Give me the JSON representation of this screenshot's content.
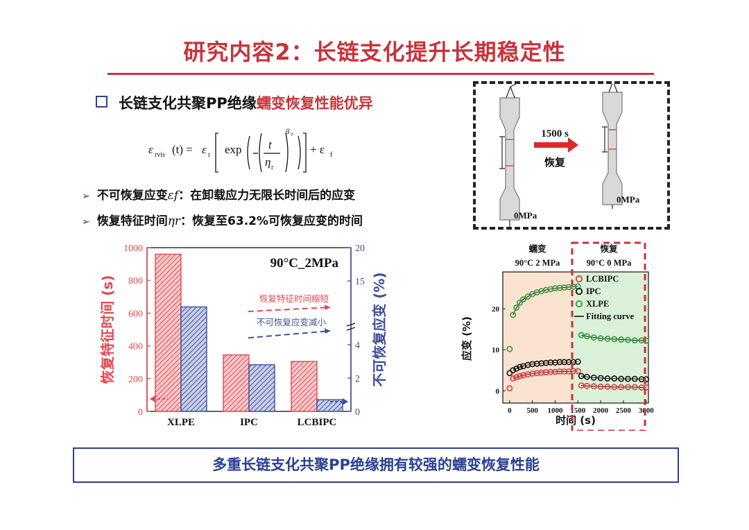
{
  "title": "研究内容2：长链支化提升长期稳定性",
  "subheading": {
    "prefix": "长链支化共聚PP绝缘",
    "highlight": "蠕变恢复性能优异"
  },
  "formula": {
    "lhs": "ε",
    "lhs_sub": "rvis",
    "t_arg": "(t) =",
    "coef": "ε",
    "coef_sub": "r",
    "exp": "exp",
    "num": "t",
    "den": "η",
    "den_sub": "r",
    "power": "β",
    "power_sub": "r",
    "tail": "+ ε",
    "tail_sub": "f"
  },
  "bullets": [
    {
      "marker": "➢",
      "before": "不可恢复应变",
      "symbol": "εf",
      "after": "：在卸载应力无限长时间后的应变"
    },
    {
      "marker": "➢",
      "before": "恢复特征时间",
      "symbol": "ηr",
      "after": "：恢复至63.2%可恢复应变的时间"
    }
  ],
  "diagram": {
    "arrow_label": "1500 s",
    "arrow_sub": "恢复",
    "left_stress": "0MPa",
    "right_stress": "0MPa"
  },
  "chart_data": [
    {
      "type": "bar",
      "title": "90°C_2MPa",
      "categories": [
        "XLPE",
        "IPC",
        "LCBIPC"
      ],
      "ylabel": "恢复特征时间 (s)",
      "y2label": "不可恢复应变 (%)",
      "ylim": [
        0,
        1000
      ],
      "y_ticks": [
        "0",
        "200",
        "400",
        "600",
        "800",
        "1000"
      ],
      "y2_ticks": [
        "0",
        "2",
        "4",
        "15",
        "20"
      ],
      "series": [
        {
          "name": "恢复特征时间",
          "axis": "left",
          "color": "#e0474f",
          "values": [
            960,
            345,
            305
          ]
        },
        {
          "name": "不可恢复应变",
          "axis": "right",
          "color": "#3b4f9a",
          "values": [
            11.1,
            2.8,
            0.7
          ]
        }
      ],
      "annotations": [
        "恢复特征时间缩短",
        "不可恢复应变减小"
      ],
      "colors": {
        "red": "#e0474f",
        "blue": "#3b4f9a"
      }
    },
    {
      "type": "scatter",
      "region_labels": [
        {
          "title": "蠕变",
          "sub": "90°C 2 MPa"
        },
        {
          "title": "恢复",
          "sub": "90°C 0 MPa"
        }
      ],
      "xlabel": "时间 (s)",
      "ylabel": "应变 (%)",
      "xlim": [
        -150,
        3050
      ],
      "ylim": [
        -3,
        29
      ],
      "x_ticks": [
        "0",
        "500",
        "1000",
        "1500",
        "2000",
        "2500",
        "3000"
      ],
      "y_ticks": [
        "0",
        "10",
        "20"
      ],
      "legend": [
        "LCBIPC",
        "IPC",
        "XLPE",
        "Fitting curve"
      ],
      "series": [
        {
          "name": "LCBIPC",
          "color": "#e0363e",
          "x": [
            0,
            75,
            150,
            225,
            300,
            400,
            500,
            600,
            700,
            800,
            900,
            1000,
            1100,
            1200,
            1300,
            1400,
            1500,
            1575,
            1700,
            1850,
            2000,
            2150,
            2300,
            2450,
            2600,
            2750,
            2900,
            3000
          ],
          "y": [
            0.6,
            3.0,
            3.3,
            3.6,
            3.8,
            4.0,
            4.2,
            4.3,
            4.4,
            4.5,
            4.6,
            4.6,
            4.7,
            4.7,
            4.7,
            4.8,
            4.8,
            1.3,
            1.2,
            1.1,
            1.0,
            1.0,
            0.9,
            0.9,
            0.9,
            0.9,
            0.8,
            0.8
          ]
        },
        {
          "name": "IPC",
          "color": "#111111",
          "x": [
            0,
            75,
            150,
            225,
            300,
            400,
            500,
            600,
            700,
            800,
            900,
            1000,
            1100,
            1200,
            1300,
            1400,
            1500,
            1575,
            1700,
            1850,
            2000,
            2150,
            2300,
            2450,
            2600,
            2750,
            2900,
            3000
          ],
          "y": [
            4.3,
            5.0,
            5.4,
            5.8,
            6.0,
            6.3,
            6.5,
            6.6,
            6.7,
            6.8,
            6.9,
            6.9,
            7.0,
            7.0,
            7.0,
            7.0,
            7.1,
            3.6,
            3.4,
            3.2,
            3.1,
            3.0,
            3.0,
            2.9,
            2.9,
            2.9,
            2.8,
            2.8
          ]
        },
        {
          "name": "XLPE",
          "color": "#2f9a3a",
          "x": [
            0,
            75,
            150,
            225,
            300,
            400,
            500,
            600,
            700,
            800,
            900,
            1000,
            1100,
            1200,
            1300,
            1400,
            1500,
            1575,
            1700,
            1850,
            2000,
            2150,
            2300,
            2450,
            2600,
            2750,
            2900,
            3000
          ],
          "y": [
            10.2,
            18.5,
            20.3,
            21.5,
            22.3,
            23.0,
            23.6,
            24.0,
            24.3,
            24.6,
            24.8,
            25.0,
            25.1,
            25.2,
            25.3,
            25.4,
            25.5,
            13.6,
            13.3,
            13.0,
            12.8,
            12.7,
            12.6,
            12.5,
            12.4,
            12.3,
            12.3,
            12.2
          ]
        }
      ]
    }
  ],
  "summary": "多重长链支化共聚PP绝缘拥有较强的蠕变恢复性能"
}
